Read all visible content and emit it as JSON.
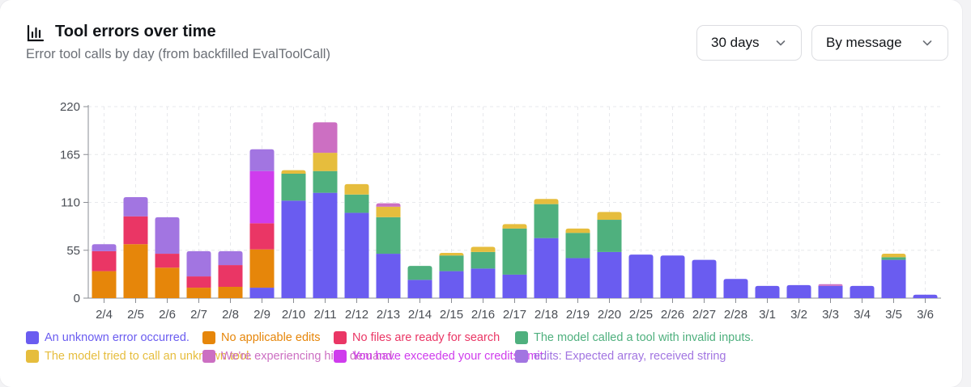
{
  "header": {
    "title": "Tool errors over time",
    "subtitle": "Error tool calls by day (from backfilled EvalToolCall)",
    "icon": "bar-chart-icon"
  },
  "controls": {
    "range": {
      "value": "30 days",
      "icon": "chevron-down-icon"
    },
    "group_by": {
      "value": "By message",
      "icon": "chevron-down-icon"
    }
  },
  "colors": {
    "axis_text": "#4a4e55",
    "grid": "#e7e8ec"
  },
  "chart_data": {
    "type": "bar",
    "stacked": true,
    "title": "Tool errors over time",
    "xlabel": "",
    "ylabel": "",
    "ylim": [
      0,
      220
    ],
    "yticks": [
      0,
      55,
      110,
      165,
      220
    ],
    "grid": true,
    "legend_position": "bottom",
    "categories": [
      "2/4",
      "2/5",
      "2/6",
      "2/7",
      "2/8",
      "2/9",
      "2/10",
      "2/11",
      "2/12",
      "2/13",
      "2/14",
      "2/15",
      "2/16",
      "2/17",
      "2/18",
      "2/19",
      "2/20",
      "2/25",
      "2/26",
      "2/27",
      "2/28",
      "3/1",
      "3/2",
      "3/3",
      "3/4",
      "3/5",
      "3/6"
    ],
    "series": [
      {
        "name": "An unknown error occurred.",
        "color": "#6a5cf0",
        "values": [
          0,
          0,
          0,
          0,
          0,
          12,
          112,
          121,
          98,
          51,
          21,
          31,
          34,
          27,
          69,
          46,
          53,
          50,
          49,
          44,
          22,
          14,
          15,
          14,
          14,
          44,
          4
        ]
      },
      {
        "name": "No applicable edits",
        "color": "#e6860a",
        "values": [
          31,
          62,
          35,
          12,
          13,
          44,
          0,
          0,
          0,
          0,
          0,
          0,
          0,
          0,
          0,
          0,
          0,
          0,
          0,
          0,
          0,
          0,
          0,
          0,
          0,
          0,
          0
        ]
      },
      {
        "name": "No files are ready for search",
        "color": "#ea3665",
        "values": [
          23,
          32,
          16,
          13,
          25,
          30,
          0,
          0,
          0,
          0,
          0,
          0,
          0,
          0,
          0,
          0,
          0,
          0,
          0,
          0,
          0,
          0,
          0,
          0,
          0,
          0,
          0
        ]
      },
      {
        "name": "The model called a tool with invalid inputs.",
        "color": "#4fb07e",
        "values": [
          0,
          0,
          0,
          0,
          0,
          0,
          31,
          25,
          21,
          42,
          16,
          18,
          19,
          53,
          39,
          29,
          37,
          0,
          0,
          0,
          0,
          0,
          0,
          0,
          0,
          3,
          0
        ]
      },
      {
        "name": "The model tried to call an unknown tool.",
        "color": "#e6bd3d",
        "values": [
          0,
          0,
          0,
          0,
          0,
          0,
          4,
          21,
          12,
          12,
          0,
          3,
          6,
          5,
          6,
          5,
          9,
          0,
          0,
          0,
          0,
          0,
          0,
          0,
          0,
          4,
          0
        ]
      },
      {
        "name": "We're experiencing high demand.",
        "color": "#cc6fc2",
        "values": [
          0,
          0,
          0,
          0,
          0,
          0,
          0,
          35,
          0,
          4,
          0,
          0,
          0,
          0,
          0,
          0,
          0,
          0,
          0,
          0,
          0,
          0,
          0,
          2,
          0,
          0,
          0
        ]
      },
      {
        "name": "You have exceeded your credits limit.",
        "color": "#cf3ced",
        "values": [
          0,
          0,
          0,
          0,
          0,
          60,
          0,
          0,
          0,
          0,
          0,
          0,
          0,
          0,
          0,
          0,
          0,
          0,
          0,
          0,
          0,
          0,
          0,
          0,
          0,
          0,
          0
        ]
      },
      {
        "name": "edits: Expected array, received string",
        "color": "#a275e1",
        "values": [
          8,
          22,
          42,
          29,
          16,
          25,
          0,
          0,
          0,
          0,
          0,
          0,
          0,
          0,
          0,
          0,
          0,
          0,
          0,
          0,
          0,
          0,
          0,
          0,
          0,
          0,
          0
        ]
      }
    ]
  }
}
